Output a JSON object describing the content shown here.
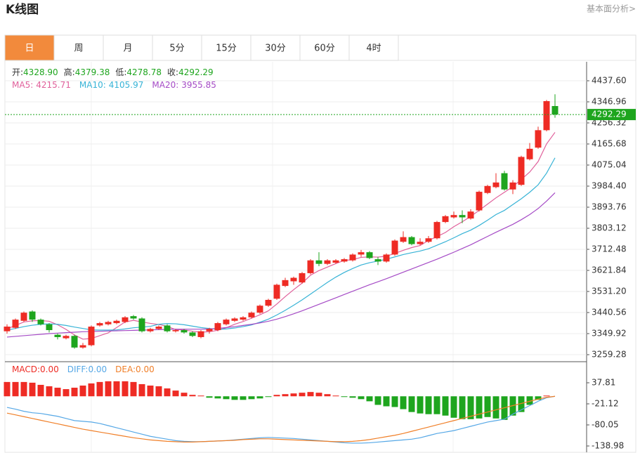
{
  "header": {
    "title": "K线图",
    "link": "基本面分析>"
  },
  "tabs": [
    "日",
    "周",
    "月",
    "5分",
    "15分",
    "30分",
    "60分",
    "4时"
  ],
  "active_tab": 0,
  "summary": [
    {
      "label": "开:",
      "text": "4328.90"
    },
    {
      "label": "高:",
      "text": "4379.38"
    },
    {
      "label": "低:",
      "text": "4278.78"
    },
    {
      "label": "收:",
      "text": "4292.29"
    }
  ],
  "chart_data": [
    {
      "type": "candlestick",
      "up_color": "#ee2b24",
      "down_color": "#1ea51e",
      "last_color": "#1ea51e",
      "grid": true,
      "ylim": [
        3229.07,
        4519.17
      ],
      "yticks": [
        {
          "value": 3259.28,
          "label": "3259.28"
        },
        3349.92,
        3440.56,
        {
          "value": 3531.2,
          "label": "3531.20"
        },
        3621.84,
        3712.48,
        3803.12,
        3893.76,
        {
          "value": 3984.4,
          "label": "3984.40"
        },
        4075.04,
        4165.68,
        4256.32,
        4346.96,
        {
          "value": 4437.6,
          "label": "4437.60"
        }
      ],
      "ohlc": [
        [
          3360,
          3390,
          3350,
          3380
        ],
        [
          3375,
          3415,
          3370,
          3410
        ],
        [
          3405,
          3445,
          3400,
          3440
        ],
        [
          3445,
          3450,
          3400,
          3410
        ],
        [
          3410,
          3415,
          3385,
          3390
        ],
        [
          3390,
          3395,
          3355,
          3365
        ],
        [
          3345,
          3350,
          3325,
          3335
        ],
        [
          3330,
          3345,
          3325,
          3340
        ],
        [
          3340,
          3345,
          3285,
          3290
        ],
        [
          3290,
          3310,
          3285,
          3300
        ],
        [
          3300,
          3385,
          3295,
          3380
        ],
        [
          3385,
          3400,
          3380,
          3395
        ],
        [
          3390,
          3405,
          3385,
          3400
        ],
        [
          3395,
          3410,
          3390,
          3405
        ],
        [
          3400,
          3425,
          3395,
          3420
        ],
        [
          3425,
          3430,
          3410,
          3415
        ],
        [
          3415,
          3420,
          3355,
          3360
        ],
        [
          3360,
          3375,
          3355,
          3370
        ],
        [
          3370,
          3385,
          3365,
          3380
        ],
        [
          3385,
          3390,
          3355,
          3360
        ],
        [
          3360,
          3370,
          3355,
          3365
        ],
        [
          3365,
          3370,
          3350,
          3355
        ],
        [
          3355,
          3360,
          3335,
          3340
        ],
        [
          3335,
          3365,
          3330,
          3360
        ],
        [
          3360,
          3375,
          3350,
          3370
        ],
        [
          3365,
          3400,
          3360,
          3395
        ],
        [
          3390,
          3415,
          3385,
          3410
        ],
        [
          3405,
          3420,
          3400,
          3415
        ],
        [
          3410,
          3425,
          3405,
          3420
        ],
        [
          3420,
          3445,
          3415,
          3440
        ],
        [
          3440,
          3475,
          3435,
          3470
        ],
        [
          3470,
          3500,
          3465,
          3495
        ],
        [
          3500,
          3565,
          3495,
          3560
        ],
        [
          3555,
          3590,
          3550,
          3580
        ],
        [
          3575,
          3595,
          3560,
          3590
        ],
        [
          3570,
          3615,
          3565,
          3610
        ],
        [
          3610,
          3670,
          3605,
          3665
        ],
        [
          3665,
          3700,
          3640,
          3650
        ],
        [
          3650,
          3670,
          3645,
          3665
        ],
        [
          3655,
          3670,
          3650,
          3665
        ],
        [
          3660,
          3675,
          3655,
          3670
        ],
        [
          3665,
          3695,
          3660,
          3690
        ],
        [
          3690,
          3710,
          3680,
          3700
        ],
        [
          3700,
          3705,
          3670,
          3675
        ],
        [
          3670,
          3680,
          3645,
          3660
        ],
        [
          3660,
          3695,
          3655,
          3690
        ],
        [
          3690,
          3755,
          3685,
          3750
        ],
        [
          3745,
          3790,
          3740,
          3765
        ],
        [
          3765,
          3770,
          3730,
          3735
        ],
        [
          3735,
          3760,
          3730,
          3745
        ],
        [
          3745,
          3770,
          3740,
          3760
        ],
        [
          3760,
          3835,
          3755,
          3830
        ],
        [
          3830,
          3860,
          3825,
          3855
        ],
        [
          3850,
          3875,
          3845,
          3860
        ],
        [
          3860,
          3880,
          3825,
          3850
        ],
        [
          3845,
          3885,
          3840,
          3875
        ],
        [
          3880,
          3965,
          3875,
          3960
        ],
        [
          3955,
          3990,
          3950,
          3985
        ],
        [
          3980,
          4040,
          3975,
          4000
        ],
        [
          4040,
          4050,
          3965,
          3970
        ],
        [
          3970,
          4010,
          3950,
          4000
        ],
        [
          3990,
          4115,
          3985,
          4110
        ],
        [
          4100,
          4170,
          4095,
          4145
        ],
        [
          4150,
          4240,
          4145,
          4225
        ],
        [
          4225,
          4355,
          4220,
          4350
        ],
        [
          4328.9,
          4379.38,
          4278.78,
          4292.29
        ]
      ],
      "series": [
        {
          "name": "MA5:",
          "color": "#e0609b",
          "values": [
            3370,
            3385,
            3400,
            3405,
            3406,
            3403,
            3388,
            3368,
            3344,
            3326,
            3329,
            3341,
            3353,
            3376,
            3400,
            3407,
            3400,
            3394,
            3389,
            3381,
            3367,
            3366,
            3360,
            3356,
            3358,
            3364,
            3375,
            3390,
            3402,
            3416,
            3431,
            3448,
            3477,
            3509,
            3539,
            3567,
            3601,
            3621,
            3636,
            3651,
            3665,
            3668,
            3678,
            3680,
            3679,
            3683,
            3695,
            3708,
            3720,
            3729,
            3751,
            3767,
            3785,
            3810,
            3831,
            3854,
            3880,
            3907,
            3934,
            3958,
            3982,
            4013,
            4045,
            4090,
            4166,
            4215.71
          ]
        },
        {
          "name": "MA10:",
          "color": "#37b3d6",
          "values": [
            3365,
            3372,
            3380,
            3386,
            3390,
            3392,
            3390,
            3385,
            3378,
            3372,
            3366,
            3365,
            3365,
            3366,
            3370,
            3375,
            3378,
            3381,
            3390,
            3393,
            3392,
            3388,
            3382,
            3376,
            3372,
            3368,
            3370,
            3374,
            3380,
            3387,
            3399,
            3412,
            3430,
            3450,
            3472,
            3495,
            3520,
            3545,
            3570,
            3593,
            3613,
            3630,
            3645,
            3655,
            3662,
            3670,
            3680,
            3690,
            3698,
            3705,
            3715,
            3730,
            3745,
            3762,
            3780,
            3795,
            3815,
            3838,
            3862,
            3880,
            3905,
            3930,
            3958,
            3990,
            4040,
            4105.97
          ]
        },
        {
          "name": "MA20:",
          "color": "#a54bc6",
          "values": [
            3335,
            3338,
            3341,
            3344,
            3347,
            3350,
            3352,
            3354,
            3356,
            3358,
            3359,
            3360,
            3361,
            3362,
            3363,
            3364,
            3365,
            3366,
            3367,
            3368,
            3369,
            3369,
            3369,
            3369,
            3370,
            3372,
            3376,
            3380,
            3385,
            3390,
            3396,
            3403,
            3412,
            3423,
            3435,
            3448,
            3462,
            3476,
            3490,
            3504,
            3518,
            3532,
            3546,
            3560,
            3573,
            3586,
            3600,
            3614,
            3628,
            3642,
            3656,
            3670,
            3685,
            3700,
            3716,
            3732,
            3750,
            3768,
            3786,
            3803,
            3820,
            3840,
            3862,
            3888,
            3920,
            3955.85
          ]
        }
      ]
    },
    {
      "type": "macd",
      "up_color": "#ee2b24",
      "down_color": "#1ea51e",
      "ylim": [
        -158.62,
        92.81
      ],
      "yticks": [
        -138.98,
        -80.05,
        -21.12,
        37.81
      ],
      "histogram": {
        "name": "MACD:",
        "color": "#ee2b24",
        "legend_value": "0.00",
        "values": [
          40,
          40,
          40,
          38,
          32,
          28,
          24,
          20,
          24,
          30,
          36,
          40,
          42,
          42,
          42,
          40,
          34,
          30,
          28,
          22,
          16,
          10,
          4,
          2,
          -4,
          -6,
          -8,
          -10,
          -10,
          -8,
          -6,
          -2,
          4,
          6,
          8,
          10,
          12,
          10,
          6,
          2,
          -2,
          -4,
          -8,
          -14,
          -24,
          -28,
          -30,
          -36,
          -44,
          -48,
          -50,
          -50,
          -54,
          -60,
          -64,
          -64,
          -62,
          -58,
          -62,
          -66,
          -54,
          -44,
          -24,
          -10,
          2,
          0
        ]
      },
      "series": [
        {
          "name": "DIFF:",
          "color": "#56a8e6",
          "legend_value": "0.00",
          "values": [
            -31,
            -36,
            -42,
            -46,
            -48,
            -52,
            -56,
            -62,
            -68,
            -70,
            -72,
            -76,
            -82,
            -88,
            -94,
            -100,
            -106,
            -112,
            -116,
            -120,
            -124,
            -126,
            -127,
            -127,
            -126,
            -125,
            -124,
            -122,
            -120,
            -118,
            -116,
            -115,
            -116,
            -117,
            -118,
            -120,
            -122,
            -124,
            -126,
            -128,
            -130,
            -131,
            -131,
            -130,
            -128,
            -126,
            -124,
            -122,
            -120,
            -116,
            -110,
            -104,
            -100,
            -96,
            -90,
            -84,
            -78,
            -72,
            -68,
            -64,
            -50,
            -38,
            -26,
            -14,
            -4,
            0
          ]
        },
        {
          "name": "DEA:",
          "color": "#f07f28",
          "legend_value": "0.00",
          "values": [
            -47,
            -52,
            -57,
            -62,
            -67,
            -72,
            -77,
            -82,
            -87,
            -92,
            -96,
            -100,
            -104,
            -108,
            -112,
            -116,
            -119,
            -122,
            -124,
            -126,
            -127,
            -128,
            -128,
            -127,
            -126,
            -125,
            -124,
            -123,
            -121,
            -120,
            -119,
            -119,
            -120,
            -121,
            -122,
            -123,
            -124,
            -125,
            -126,
            -127,
            -127,
            -126,
            -124,
            -121,
            -117,
            -113,
            -109,
            -104,
            -98,
            -92,
            -86,
            -80,
            -74,
            -68,
            -62,
            -56,
            -50,
            -44,
            -38,
            -32,
            -26,
            -20,
            -14,
            -8,
            -3,
            0
          ]
        }
      ]
    }
  ]
}
